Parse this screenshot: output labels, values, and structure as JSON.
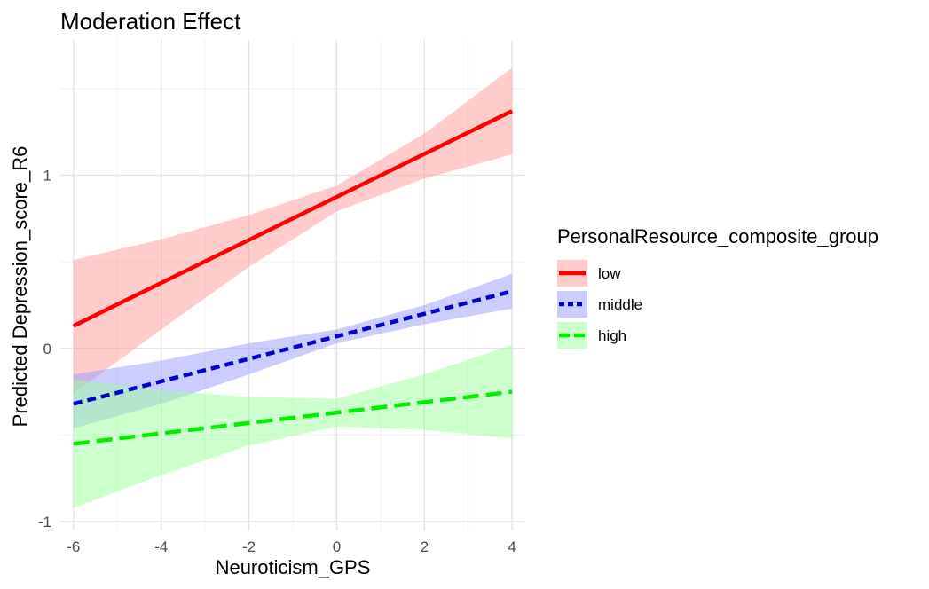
{
  "chart_data": {
    "type": "line",
    "title": "Moderation Effect",
    "xlabel": "Neuroticism_GPS",
    "ylabel": "Predicted Depression_score_R6",
    "xlim": [
      -6.3,
      4.3
    ],
    "ylim": [
      -1.05,
      1.78
    ],
    "x_ticks": [
      -6,
      -4,
      -2,
      0,
      2,
      4
    ],
    "x_tick_labels": [
      "-6",
      "-4",
      "-2",
      "0",
      "2",
      "4"
    ],
    "y_ticks": [
      -1,
      0,
      1
    ],
    "y_tick_labels": [
      "-1",
      "0",
      "1"
    ],
    "grid": true,
    "legend": {
      "title": "PersonalResource_composite_group",
      "position": "right"
    },
    "series": [
      {
        "name": "low",
        "color": "#ff0000",
        "band_color": "#ff9999",
        "line_style": "solid",
        "x": [
          -6,
          4
        ],
        "y": [
          0.13,
          1.37
        ],
        "band_x": [
          -6,
          -4,
          -2,
          0,
          2,
          4
        ],
        "band_lower": [
          -0.26,
          0.11,
          0.47,
          0.79,
          0.98,
          1.12
        ],
        "band_upper": [
          0.51,
          0.63,
          0.77,
          0.94,
          1.24,
          1.62
        ]
      },
      {
        "name": "middle",
        "color": "#0000cc",
        "band_color": "#9999ff",
        "line_style": "dotted",
        "x": [
          -6,
          4
        ],
        "y": [
          -0.32,
          0.33
        ],
        "band_x": [
          -6,
          -4,
          -2,
          0,
          2,
          4
        ],
        "band_lower": [
          -0.46,
          -0.32,
          -0.15,
          0.03,
          0.14,
          0.23
        ],
        "band_upper": [
          -0.15,
          -0.07,
          0.03,
          0.11,
          0.25,
          0.43
        ]
      },
      {
        "name": "high",
        "color": "#00ee00",
        "band_color": "#99ff99",
        "line_style": "dashed",
        "x": [
          -6,
          4
        ],
        "y": [
          -0.55,
          -0.25
        ],
        "band_x": [
          -6,
          -4,
          -2,
          0,
          2,
          4
        ],
        "band_lower": [
          -0.92,
          -0.73,
          -0.56,
          -0.45,
          -0.47,
          -0.52
        ],
        "band_upper": [
          -0.18,
          -0.24,
          -0.28,
          -0.29,
          -0.15,
          0.02
        ]
      }
    ]
  }
}
